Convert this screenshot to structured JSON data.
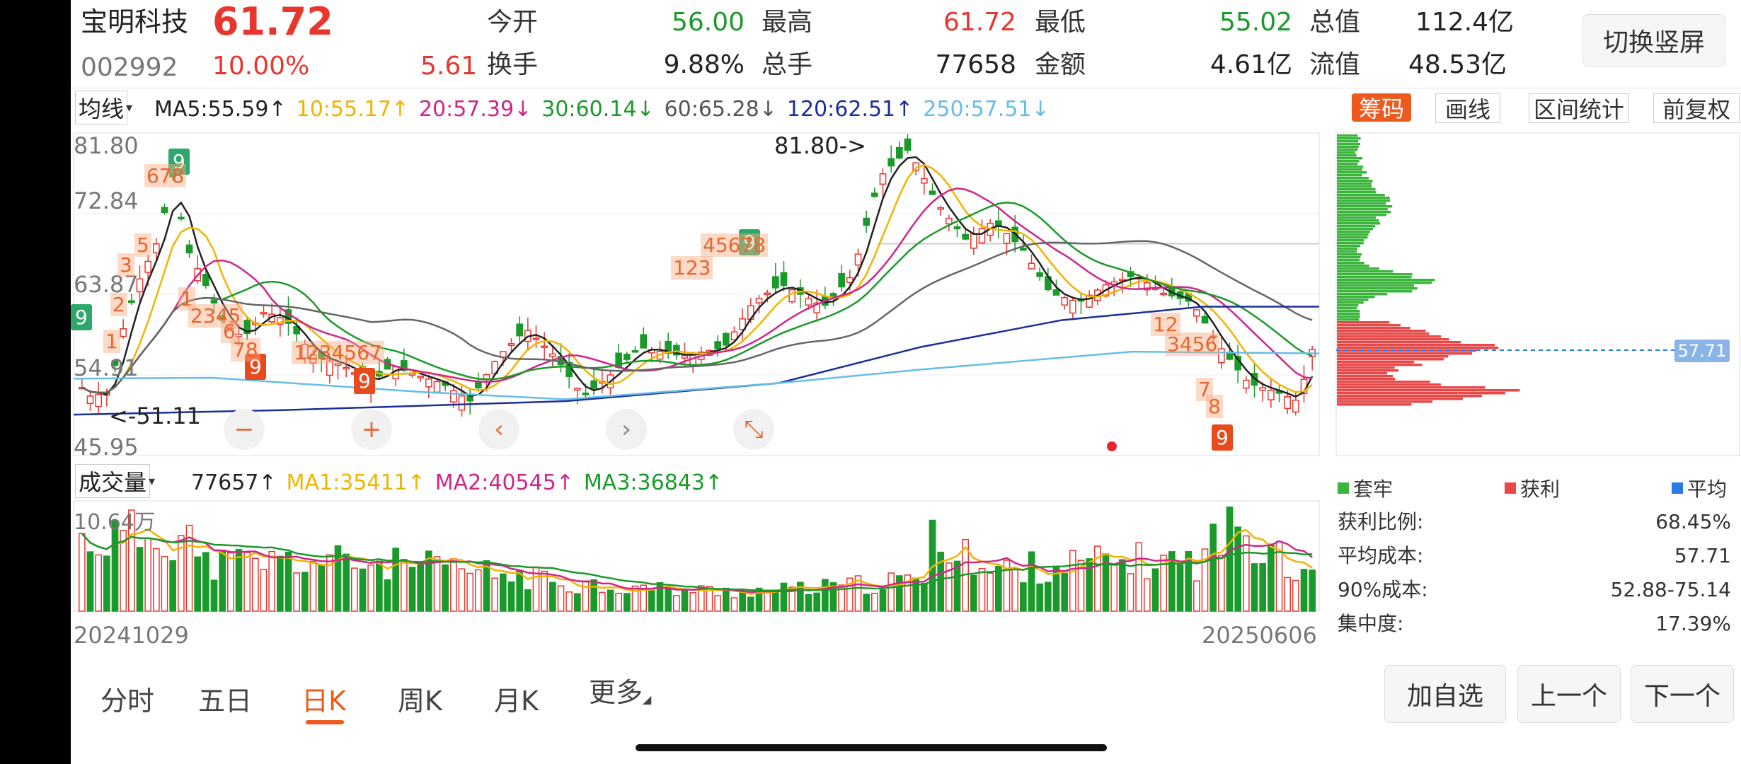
{
  "header": {
    "name": "宝明科技",
    "price": "61.72",
    "code": "002992",
    "change_pct": "10.00%",
    "change_amt": "5.61",
    "stats": [
      {
        "label": "今开",
        "value": "56.00",
        "color": "#1a9a2a"
      },
      {
        "label": "最高",
        "value": "61.72",
        "color": "#e8362f"
      },
      {
        "label": "最低",
        "value": "55.02",
        "color": "#1a9a2a"
      },
      {
        "label": "总值",
        "value": "112.4亿",
        "color": "#222222"
      },
      {
        "label": "换手",
        "value": "9.88%",
        "color": "#222222"
      },
      {
        "label": "总手",
        "value": "77658",
        "color": "#222222"
      },
      {
        "label": "金额",
        "value": "4.61亿",
        "color": "#222222"
      },
      {
        "label": "流值",
        "value": "48.53亿",
        "color": "#222222"
      }
    ],
    "switch_button": "切换竖屏"
  },
  "ma_bar": {
    "selector": "均线",
    "items": [
      {
        "text": "MA5:55.59",
        "arrow": "↑",
        "color": "#222222"
      },
      {
        "text": "10:55.17",
        "arrow": "↑",
        "color": "#f0b400"
      },
      {
        "text": "20:57.39",
        "arrow": "↓",
        "color": "#d0268a"
      },
      {
        "text": "30:60.14",
        "arrow": "↓",
        "color": "#1a9a2a"
      },
      {
        "text": "60:65.28",
        "arrow": "↓",
        "color": "#555555"
      },
      {
        "text": "120:62.51",
        "arrow": "↑",
        "color": "#1a2f9a"
      },
      {
        "text": "250:57.51",
        "arrow": "↓",
        "color": "#66bde8"
      }
    ]
  },
  "right_tabs": [
    "筹码",
    "画线",
    "区间统计",
    "前复权"
  ],
  "price_axis": {
    "top": "81.80",
    "mid1": "72.84",
    "mid2": "63.87",
    "mid3": "54.91",
    "bottom": "45.95"
  },
  "annotations": {
    "high": "81.80->",
    "low": "<-51.11"
  },
  "chart_controls": [
    "−",
    "+",
    "‹",
    "›",
    "⤡"
  ],
  "volume_bar": {
    "selector": "成交量",
    "items": [
      {
        "text": "77657",
        "arrow": "↑",
        "color": "#222222"
      },
      {
        "text": "MA1:35411",
        "arrow": "↑",
        "color": "#f0b400"
      },
      {
        "text": "MA2:40545",
        "arrow": "↑",
        "color": "#d0268a"
      },
      {
        "text": "MA3:36843",
        "arrow": "↑",
        "color": "#1a9a2a"
      }
    ],
    "axis_top": "10.64万"
  },
  "dates": {
    "start": "20241029",
    "end": "20250606"
  },
  "chip": {
    "cost_line": "57.71",
    "legend": [
      {
        "label": "套牢",
        "color": "#3bb43b"
      },
      {
        "label": "获利",
        "color": "#e84848"
      },
      {
        "label": "平均",
        "color": "#2a7ae8"
      }
    ],
    "stats": [
      {
        "label": "获利比例:",
        "value": "68.45%"
      },
      {
        "label": "平均成本:",
        "value": "57.71"
      },
      {
        "label": "90%成本:",
        "value": "52.88-75.14"
      },
      {
        "label": "集中度:",
        "value": "17.39%"
      }
    ]
  },
  "bottom_tabs": [
    "分时",
    "五日",
    "日K",
    "周K",
    "月K",
    "更多"
  ],
  "active_tab": "日K",
  "actions": [
    "加自选",
    "上一个",
    "下一个"
  ]
}
